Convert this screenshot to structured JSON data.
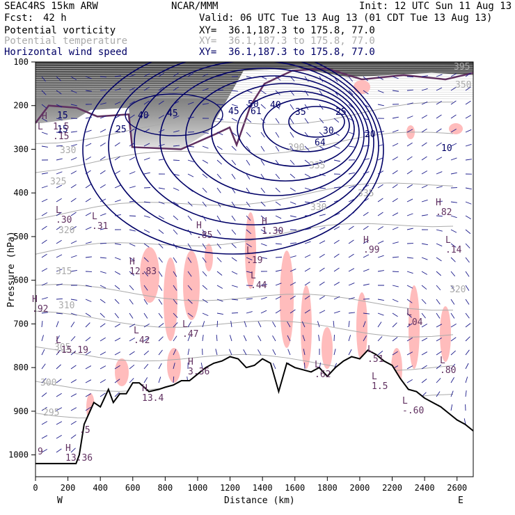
{
  "header": {
    "model": "SEAC4RS 15km ARW",
    "org": "NCAR/MMM",
    "init": "Init: 12 UTC Sun 11 Aug 13",
    "fcst_label": "Fcst:",
    "fcst_value": "42 h",
    "valid": "Valid: 06 UTC Tue 13 Aug 13 (01 CDT Tue 13 Aug 13)"
  },
  "fields": [
    {
      "name": "Potential vorticity",
      "xy": "XY=  36.1,187.3 to 175.8, 77.0",
      "color": "#000000"
    },
    {
      "name": "Potential temperature",
      "xy": "XY=  36.1,187.3 to 175.8, 77.0",
      "color": "#aaaaaa"
    },
    {
      "name": "Horizontal wind speed",
      "xy": "XY=  36.1,187.3 to 175.8, 77.0",
      "color": "#000066"
    }
  ],
  "chart_data": {
    "type": "line",
    "xlabel": "Distance (km)",
    "ylabel": "Pressure (hPa)",
    "xlim": [
      0,
      2700
    ],
    "ylim": [
      1050,
      100
    ],
    "x_ticks": [
      0,
      200,
      400,
      600,
      800,
      1000,
      1200,
      1400,
      1600,
      1800,
      2000,
      2200,
      2400,
      2600
    ],
    "y_ticks": [
      100,
      200,
      300,
      400,
      500,
      600,
      700,
      800,
      900,
      1000
    ],
    "x_end_labels": {
      "left": "W",
      "right": "E"
    },
    "terrain": {
      "x": [
        0,
        250,
        270,
        300,
        330,
        360,
        400,
        450,
        480,
        520,
        560,
        600,
        640,
        700,
        760,
        800,
        850,
        900,
        950,
        1000,
        1050,
        1100,
        1150,
        1200,
        1250,
        1300,
        1350,
        1400,
        1450,
        1500,
        1550,
        1600,
        1650,
        1700,
        1750,
        1800,
        1850,
        1900,
        1950,
        2000,
        2050,
        2100,
        2150,
        2200,
        2250,
        2300,
        2350,
        2400,
        2450,
        2500,
        2550,
        2600,
        2650,
        2700
      ],
      "p": [
        1020,
        1020,
        1000,
        930,
        905,
        880,
        890,
        850,
        880,
        860,
        860,
        835,
        835,
        855,
        850,
        845,
        840,
        830,
        830,
        815,
        800,
        790,
        785,
        775,
        780,
        800,
        795,
        780,
        790,
        855,
        790,
        800,
        805,
        810,
        800,
        820,
        800,
        785,
        775,
        780,
        760,
        770,
        785,
        795,
        825,
        850,
        855,
        870,
        880,
        890,
        905,
        920,
        930,
        945
      ]
    },
    "wind_speed_labels": [
      "15",
      "15",
      "25",
      "40",
      "45",
      "45",
      "50",
      "61",
      "40",
      "35",
      "25",
      "30",
      "64",
      "20",
      "10"
    ],
    "theta_labels": [
      "330",
      "325",
      "320",
      "315",
      "310",
      "305",
      "300",
      "295",
      "290",
      "335",
      "330",
      "320",
      "335",
      "350",
      "395"
    ],
    "pv_extrema": [
      {
        "type": "H",
        "value": "1.5"
      },
      {
        "type": "L",
        "value": ".15"
      },
      {
        "type": "L",
        "value": ".30"
      },
      {
        "type": "L",
        "value": ".31"
      },
      {
        "type": "H",
        "value": ".85"
      },
      {
        "type": "H",
        "value": "1.30"
      },
      {
        "type": "H",
        "value": "12.83"
      },
      {
        "type": "L",
        "value": ".19"
      },
      {
        "type": "L",
        "value": ".44"
      },
      {
        "type": "H",
        "value": ".99"
      },
      {
        "type": "H",
        "value": ".82"
      },
      {
        "type": "L",
        "value": ".14"
      },
      {
        "type": "L",
        "value": ".42"
      },
      {
        "type": "L",
        "value": ".47"
      },
      {
        "type": "H",
        "value": "3.36"
      },
      {
        "type": "H",
        "value": ".92"
      },
      {
        "type": "L",
        "value": ".15.19"
      },
      {
        "type": "L",
        "value": ".04"
      },
      {
        "type": "L",
        "value": ".51"
      },
      {
        "type": "L",
        "value": ".62"
      },
      {
        "type": "L",
        "value": ".80"
      },
      {
        "type": "L",
        "value": "1.5"
      },
      {
        "type": "L",
        "value": "-.60"
      },
      {
        "type": "H",
        "value": "13.36"
      },
      {
        "type": "H",
        "value": "13.4"
      },
      {
        "type": "L",
        "value": ".5"
      },
      {
        "type": "L",
        "value": "9"
      }
    ]
  }
}
